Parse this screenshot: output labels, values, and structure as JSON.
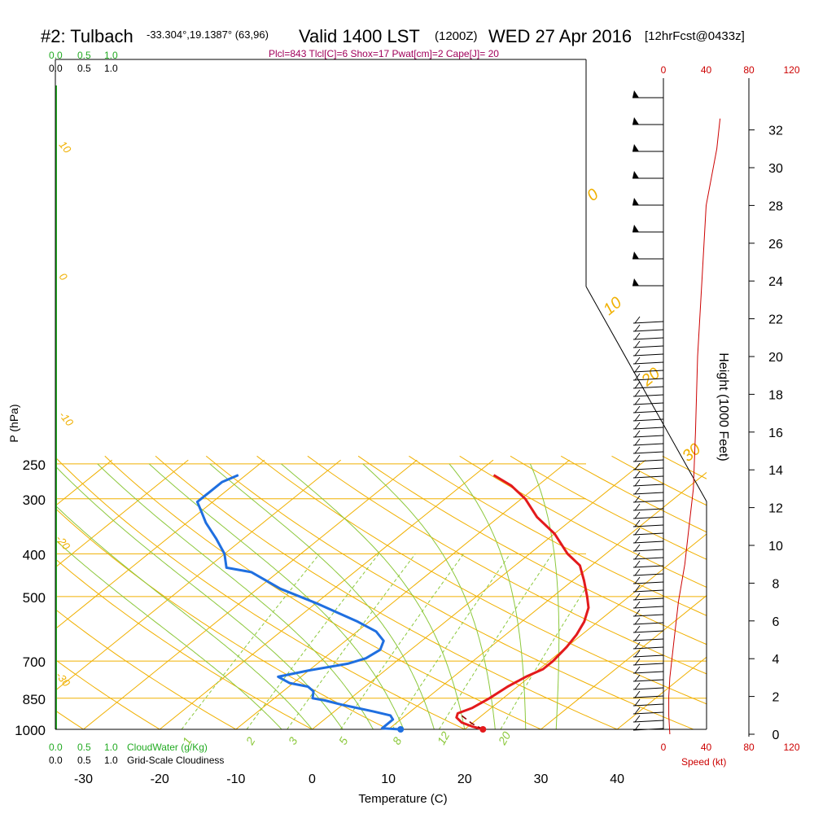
{
  "header": {
    "station": "#2: Tulbach",
    "coords": "-33.304°,19.1387° (63,96)",
    "valid": "Valid 1400 LST",
    "utc": "(1200Z)",
    "date": "WED 27 Apr 2016",
    "forecast": "[12hrFcst@0433z]",
    "indices": "Plcl=843 Tlcl[C]=6 Shox=17 Pwat[cm]=2 Cape[J]= 20"
  },
  "colors": {
    "temperature": "#e31a1c",
    "dewpoint": "#1f6fe0",
    "isotherm_isobar": "#f0b000",
    "dry_adiabat": "#f0b000",
    "moist_adiabat": "#8cc83c",
    "mixing_ratio": "#8cc83c",
    "cloud_water": "#22aa22",
    "wind_speed": "#cc0000",
    "parcel": "#8b0000"
  },
  "cloud_scales": {
    "cloud_water_ticks": [
      "0.0",
      "0.5",
      "1.0"
    ],
    "cloudiness_ticks": [
      "0.0",
      "0.5",
      "1.0"
    ],
    "cloud_water_label": "CloudWater (g/Kg)",
    "cloudiness_label": "Grid-Scale Cloudiness"
  },
  "wind_panel": {
    "speed_ticks": [
      "0",
      "40",
      "80",
      "120"
    ],
    "speed_label": "Speed (kt)",
    "height_ticks": [
      "0",
      "2",
      "4",
      "6",
      "8",
      "10",
      "12",
      "14",
      "16",
      "18",
      "20",
      "22",
      "24",
      "26",
      "28",
      "30",
      "32"
    ],
    "height_label": "Height (1000 Feet)"
  },
  "chart_data": {
    "type": "line",
    "subtype": "skew-T log-P sounding",
    "xlabel": "Temperature (C)",
    "ylabel": "P (hPa)",
    "xlim": [
      -33,
      36
    ],
    "ylim": [
      1000,
      250
    ],
    "y_scale": "log",
    "x_ticks": [
      "-30",
      "-20",
      "-10",
      "0",
      "10",
      "20",
      "30",
      "40"
    ],
    "y_ticks": [
      "250",
      "300",
      "400",
      "500",
      "700",
      "850",
      "1000"
    ],
    "dry_adiabat_labels": [
      "10",
      "0",
      "-10",
      "-20",
      "-30"
    ],
    "moist_adiabat_labels": [
      "0",
      "10",
      "20",
      "30"
    ],
    "mixing_ratio_labels": [
      "1",
      "2",
      "3",
      "5",
      "8",
      "12",
      "20"
    ],
    "series": [
      {
        "name": "Temperature",
        "points": [
          [
            22.4,
            1000
          ],
          [
            20.5,
            985
          ],
          [
            18.5,
            965
          ],
          [
            17.0,
            940
          ],
          [
            16.5,
            920
          ],
          [
            17.5,
            895
          ],
          [
            18.2,
            850
          ],
          [
            18.7,
            800
          ],
          [
            19.5,
            760
          ],
          [
            20.5,
            730
          ],
          [
            20.5,
            700
          ],
          [
            20.0,
            650
          ],
          [
            19.3,
            610
          ],
          [
            18.2,
            570
          ],
          [
            16.5,
            530
          ],
          [
            14.5,
            500
          ],
          [
            11.5,
            460
          ],
          [
            8.5,
            425
          ],
          [
            5.0,
            400
          ],
          [
            0.0,
            360
          ],
          [
            -5.0,
            330
          ],
          [
            -9.5,
            300
          ],
          [
            -13.5,
            280
          ],
          [
            -17.5,
            265
          ]
        ]
      },
      {
        "name": "Dewpoint",
        "points": [
          [
            11.6,
            1000
          ],
          [
            9.0,
            995
          ],
          [
            9.0,
            970
          ],
          [
            9.0,
            950
          ],
          [
            8.0,
            930
          ],
          [
            5.0,
            910
          ],
          [
            0.0,
            880
          ],
          [
            -3.0,
            860
          ],
          [
            -5.0,
            850
          ],
          [
            -6.0,
            820
          ],
          [
            -7.5,
            800
          ],
          [
            -10.5,
            785
          ],
          [
            -13.0,
            760
          ],
          [
            -10.0,
            735
          ],
          [
            -6.0,
            710
          ],
          [
            -4.5,
            690
          ],
          [
            -4.0,
            660
          ],
          [
            -5.0,
            630
          ],
          [
            -7.5,
            600
          ],
          [
            -11.5,
            570
          ],
          [
            -19.5,
            520
          ],
          [
            -27.0,
            480
          ],
          [
            -33.5,
            440
          ],
          [
            -37.5,
            430
          ],
          [
            -40.0,
            400
          ],
          [
            -43.5,
            370
          ],
          [
            -47.5,
            340
          ],
          [
            -50.0,
            320
          ],
          [
            -52.0,
            305
          ],
          [
            -52.0,
            290
          ],
          [
            -52.0,
            275
          ],
          [
            -51.0,
            265
          ]
        ]
      },
      {
        "name": "Parcel",
        "points": [
          [
            22.4,
            1000
          ],
          [
            20.0,
            970
          ],
          [
            18.0,
            940
          ],
          [
            17.0,
            925
          ]
        ]
      }
    ],
    "surface_temperature": 22.4,
    "surface_dewpoint": 11.6,
    "wind_speed_profile_kt": [
      [
        0,
        6
      ],
      [
        1,
        5
      ],
      [
        2,
        5
      ],
      [
        3,
        6
      ],
      [
        4,
        8
      ],
      [
        5,
        10
      ],
      [
        7,
        14
      ],
      [
        9,
        20
      ],
      [
        11,
        24
      ],
      [
        13,
        28
      ],
      [
        16,
        30
      ],
      [
        20,
        32
      ],
      [
        24,
        36
      ],
      [
        28,
        40
      ],
      [
        31,
        50
      ],
      [
        32.6,
        53
      ]
    ]
  }
}
